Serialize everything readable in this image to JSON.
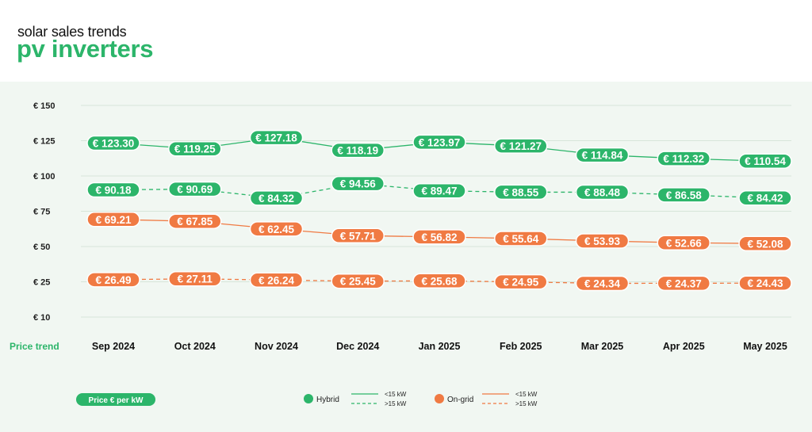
{
  "header": {
    "subtitle": "solar sales trends",
    "title": "pv inverters"
  },
  "colors": {
    "hybrid": "#2cb56a",
    "ongrid": "#f07a43",
    "grid": "#d7e5d9",
    "panel": "#f1f7f2"
  },
  "chart_data": {
    "type": "line",
    "row_label": "Price trend",
    "categories": [
      "Sep 2024",
      "Oct 2024",
      "Nov 2024",
      "Dec 2024",
      "Jan 2025",
      "Feb 2025",
      "Mar 2025",
      "Apr 2025",
      "May 2025"
    ],
    "y_ticks": [
      {
        "value": 150,
        "label": "€ 150"
      },
      {
        "value": 125,
        "label": "€ 125"
      },
      {
        "value": 100,
        "label": "€ 100"
      },
      {
        "value": 75,
        "label": "€ 75"
      },
      {
        "value": 50,
        "label": "€ 50"
      },
      {
        "value": 25,
        "label": "€ 25"
      },
      {
        "value": 10,
        "label": "€ 10"
      }
    ],
    "ylim": [
      10,
      150
    ],
    "grid": true,
    "series": [
      {
        "name": "Hybrid <15 kW",
        "group": "hybrid",
        "style": "solid",
        "values": [
          123.3,
          119.25,
          127.18,
          118.19,
          123.97,
          121.27,
          114.84,
          112.32,
          110.54
        ],
        "labels": [
          "€ 123.30",
          "€ 119.25",
          "€ 127.18",
          "€ 118.19",
          "€ 123.97",
          "€ 121.27",
          "€ 114.84",
          "€ 112.32",
          "€ 110.54"
        ]
      },
      {
        "name": "Hybrid >15 kW",
        "group": "hybrid",
        "style": "dashed",
        "values": [
          90.18,
          90.69,
          84.32,
          94.56,
          89.47,
          88.55,
          88.48,
          86.58,
          84.42
        ],
        "labels": [
          "€ 90.18",
          "€ 90.69",
          "€ 84.32",
          "€ 94.56",
          "€ 89.47",
          "€ 88.55",
          "€ 88.48",
          "€ 86.58",
          "€ 84.42"
        ]
      },
      {
        "name": "On-grid <15 kW",
        "group": "ongrid",
        "style": "solid",
        "values": [
          69.21,
          67.85,
          62.45,
          57.71,
          56.82,
          55.64,
          53.93,
          52.66,
          52.08
        ],
        "labels": [
          "€ 69.21",
          "€ 67.85",
          "€ 62.45",
          "€ 57.71",
          "€ 56.82",
          "€ 55.64",
          "€ 53.93",
          "€ 52.66",
          "€ 52.08"
        ]
      },
      {
        "name": "On-grid >15 kW",
        "group": "ongrid",
        "style": "dashed",
        "values": [
          26.49,
          27.11,
          26.24,
          25.45,
          25.68,
          24.95,
          24.34,
          24.37,
          24.43
        ],
        "labels": [
          "€ 26.49",
          "€ 27.11",
          "€ 26.24",
          "€ 25.45",
          "€ 25.68",
          "€ 24.95",
          "€ 24.34",
          "€ 24.37",
          "€ 24.43"
        ]
      }
    ]
  },
  "legend": {
    "badge": "Price € per kW",
    "hybrid_label": "Hybrid",
    "ongrid_label": "On-grid",
    "solid_label": "<15 kW",
    "dashed_label": ">15 kW"
  }
}
